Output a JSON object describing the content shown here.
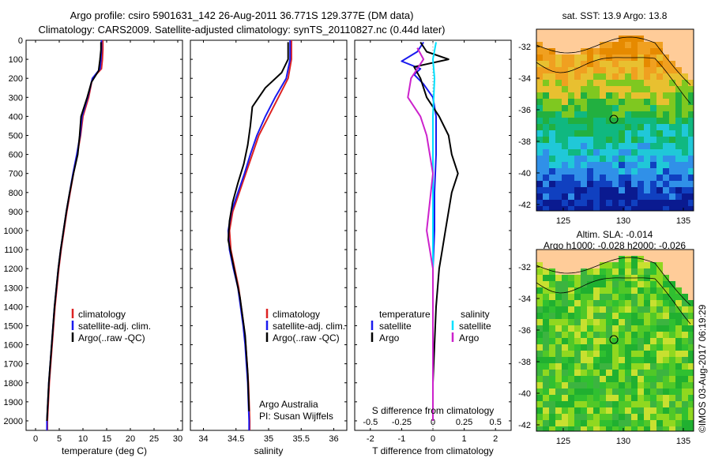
{
  "header": {
    "line1": "Argo profile: csiro 5901631_142 26-Aug-2011 36.771S 129.377E (DM data)",
    "line2": "Climatology: CARS2009. Satellite-adjusted climatology: synTS_20110827.nc (0.44d later)"
  },
  "colors": {
    "climatology": "#dd2222",
    "satellite": "#1a1aee",
    "argo": "#000000",
    "sat_sal": "#00e0ff",
    "argo_sal": "#cc22cc",
    "land": "#ffcc99"
  },
  "legend": {
    "climatology": "climatology",
    "satellite_adj": "satellite-adj. clim.",
    "argo": "Argo(..raw -QC)",
    "temperature": "temperature",
    "salinity": "salinity",
    "satellite": "satellite",
    "argo_short": "Argo"
  },
  "credits": {
    "org": "Argo Australia",
    "pi": "PI: Susan Wijffels"
  },
  "maps": {
    "sst_title": "sat. SST: 13.9 Argo: 13.8",
    "sla_title1": "Altim. SLA: -0.014",
    "sla_title2": "Argo h1000: -0.028 h2000: -0.026",
    "watermark": "©IMOS 03-Aug-2017 06:19:29",
    "lon_ticks": [
      "125",
      "130",
      "135"
    ],
    "lat_ticks": [
      "-32",
      "-34",
      "-36",
      "-38",
      "-40",
      "-42"
    ]
  },
  "chart_data": [
    {
      "type": "line",
      "xlabel": "temperature (deg C)",
      "ylabel": "",
      "xlim": [
        -2,
        31
      ],
      "ylim": [
        2050,
        0
      ],
      "xticks": [
        0,
        5,
        10,
        15,
        20,
        25,
        30
      ],
      "yticks": [
        0,
        100,
        200,
        300,
        400,
        500,
        600,
        700,
        800,
        900,
        1000,
        1100,
        1200,
        1300,
        1400,
        1500,
        1600,
        1700,
        1800,
        1900,
        2000
      ],
      "series": [
        {
          "name": "climatology",
          "color": "#dd2222",
          "points": [
            [
              14.2,
              0
            ],
            [
              14.2,
              50
            ],
            [
              14.1,
              100
            ],
            [
              13.9,
              150
            ],
            [
              12.0,
              200
            ],
            [
              11.2,
              300
            ],
            [
              10.0,
              400
            ],
            [
              9.5,
              500
            ],
            [
              8.8,
              600
            ],
            [
              8.0,
              700
            ],
            [
              7.3,
              800
            ],
            [
              6.6,
              900
            ],
            [
              6.0,
              1000
            ],
            [
              5.4,
              1100
            ],
            [
              4.9,
              1200
            ],
            [
              4.5,
              1300
            ],
            [
              4.1,
              1400
            ],
            [
              3.8,
              1500
            ],
            [
              3.5,
              1600
            ],
            [
              3.2,
              1700
            ],
            [
              2.9,
              1800
            ],
            [
              2.7,
              1900
            ],
            [
              2.5,
              2000
            ],
            [
              2.5,
              2050
            ]
          ]
        },
        {
          "name": "satellite-adj. clim.",
          "color": "#1a1aee",
          "points": [
            [
              13.9,
              0
            ],
            [
              13.9,
              50
            ],
            [
              13.8,
              100
            ],
            [
              13.6,
              150
            ],
            [
              12.0,
              200
            ],
            [
              11.0,
              300
            ],
            [
              9.8,
              400
            ],
            [
              9.4,
              500
            ],
            [
              8.7,
              600
            ],
            [
              7.9,
              700
            ],
            [
              7.2,
              800
            ],
            [
              6.5,
              900
            ],
            [
              5.9,
              1000
            ],
            [
              5.3,
              1100
            ],
            [
              4.8,
              1200
            ],
            [
              4.4,
              1300
            ],
            [
              4.0,
              1400
            ],
            [
              3.7,
              1500
            ],
            [
              3.4,
              1600
            ],
            [
              3.1,
              1700
            ],
            [
              2.8,
              1800
            ],
            [
              2.6,
              1900
            ],
            [
              2.4,
              2000
            ],
            [
              2.4,
              2050
            ]
          ]
        },
        {
          "name": "Argo(..raw -QC)",
          "color": "#000000",
          "points": [
            [
              13.8,
              10
            ],
            [
              13.8,
              50
            ],
            [
              13.6,
              100
            ],
            [
              13.3,
              160
            ],
            [
              11.8,
              220
            ],
            [
              10.9,
              300
            ],
            [
              9.6,
              400
            ],
            [
              9.3,
              500
            ],
            [
              8.9,
              600
            ],
            [
              8.0,
              700
            ],
            [
              7.2,
              800
            ],
            [
              6.5,
              900
            ],
            [
              5.9,
              1000
            ],
            [
              5.3,
              1100
            ],
            [
              4.8,
              1200
            ],
            [
              4.4,
              1300
            ],
            [
              4.0,
              1400
            ],
            [
              3.7,
              1500
            ],
            [
              3.4,
              1600
            ],
            [
              3.1,
              1700
            ],
            [
              2.8,
              1800
            ],
            [
              2.6,
              1900
            ],
            [
              2.4,
              2000
            ]
          ]
        }
      ]
    },
    {
      "type": "line",
      "xlabel": "salinity",
      "ylabel": "",
      "xlim": [
        33.8,
        36.2
      ],
      "ylim": [
        2050,
        0
      ],
      "xticks": [
        34,
        34.5,
        35,
        35.5,
        36
      ],
      "series": [
        {
          "name": "climatology",
          "color": "#dd2222",
          "points": [
            [
              35.35,
              0
            ],
            [
              35.35,
              100
            ],
            [
              35.3,
              200
            ],
            [
              35.15,
              300
            ],
            [
              35.0,
              400
            ],
            [
              34.85,
              500
            ],
            [
              34.75,
              600
            ],
            [
              34.65,
              700
            ],
            [
              34.55,
              800
            ],
            [
              34.45,
              900
            ],
            [
              34.4,
              1000
            ],
            [
              34.42,
              1100
            ],
            [
              34.48,
              1200
            ],
            [
              34.54,
              1300
            ],
            [
              34.58,
              1400
            ],
            [
              34.62,
              1500
            ],
            [
              34.65,
              1600
            ],
            [
              34.67,
              1700
            ],
            [
              34.69,
              1800
            ],
            [
              34.7,
              1900
            ],
            [
              34.71,
              2000
            ],
            [
              34.71,
              2050
            ]
          ]
        },
        {
          "name": "satellite-adj. clim.",
          "color": "#1a1aee",
          "points": [
            [
              35.33,
              0
            ],
            [
              35.33,
              100
            ],
            [
              35.27,
              200
            ],
            [
              35.1,
              300
            ],
            [
              34.95,
              400
            ],
            [
              34.82,
              500
            ],
            [
              34.72,
              600
            ],
            [
              34.63,
              700
            ],
            [
              34.53,
              800
            ],
            [
              34.43,
              900
            ],
            [
              34.38,
              1000
            ],
            [
              34.4,
              1100
            ],
            [
              34.46,
              1200
            ],
            [
              34.53,
              1300
            ],
            [
              34.57,
              1400
            ],
            [
              34.61,
              1500
            ],
            [
              34.64,
              1600
            ],
            [
              34.66,
              1700
            ],
            [
              34.68,
              1800
            ],
            [
              34.69,
              1900
            ],
            [
              34.7,
              2000
            ],
            [
              34.7,
              2050
            ]
          ]
        },
        {
          "name": "Argo(..raw -QC)",
          "color": "#000000",
          "points": [
            [
              35.3,
              10
            ],
            [
              35.3,
              100
            ],
            [
              35.2,
              170
            ],
            [
              34.95,
              250
            ],
            [
              34.75,
              350
            ],
            [
              34.72,
              450
            ],
            [
              34.68,
              550
            ],
            [
              34.62,
              650
            ],
            [
              34.53,
              750
            ],
            [
              34.45,
              850
            ],
            [
              34.4,
              950
            ],
            [
              34.38,
              1050
            ],
            [
              34.44,
              1150
            ],
            [
              34.5,
              1250
            ],
            [
              34.56,
              1350
            ],
            [
              34.6,
              1450
            ],
            [
              34.64,
              1550
            ],
            [
              34.66,
              1650
            ],
            [
              34.68,
              1750
            ],
            [
              34.69,
              1850
            ],
            [
              34.7,
              1950
            ]
          ]
        }
      ]
    },
    {
      "type": "line",
      "xlabel": "T difference from climatology",
      "xlabel2": "S difference from climatology",
      "xlim": [
        -2.5,
        2.5
      ],
      "ylim": [
        2050,
        0
      ],
      "xticks": [
        -2,
        -1,
        0,
        1,
        2
      ],
      "xticks2": [
        "-0.5",
        "-0.25",
        "0",
        "0.25",
        "0.5"
      ],
      "series": [
        {
          "name": "temperature satellite",
          "color": "#1a1aee",
          "points": [
            [
              -0.3,
              10
            ],
            [
              -0.5,
              60
            ],
            [
              -1.0,
              110
            ],
            [
              -0.4,
              150
            ],
            [
              -0.6,
              180
            ],
            [
              -0.3,
              230
            ],
            [
              0.0,
              300
            ],
            [
              0.1,
              400
            ],
            [
              0.1,
              600
            ],
            [
              0.05,
              800
            ],
            [
              0.05,
              1000
            ],
            [
              0.0,
              1200
            ],
            [
              0.0,
              1500
            ],
            [
              0.0,
              1800
            ],
            [
              0.0,
              2000
            ]
          ]
        },
        {
          "name": "temperature Argo",
          "color": "#000000",
          "points": [
            [
              -0.4,
              10
            ],
            [
              -0.2,
              60
            ],
            [
              0.5,
              100
            ],
            [
              -0.6,
              140
            ],
            [
              -0.4,
              200
            ],
            [
              -0.2,
              300
            ],
            [
              0.2,
              400
            ],
            [
              0.5,
              500
            ],
            [
              0.6,
              600
            ],
            [
              0.8,
              700
            ],
            [
              0.6,
              800
            ],
            [
              0.5,
              900
            ],
            [
              0.4,
              1000
            ],
            [
              0.3,
              1100
            ],
            [
              0.2,
              1200
            ],
            [
              0.1,
              1400
            ],
            [
              0.05,
              1600
            ],
            [
              0.0,
              1800
            ],
            [
              0.0,
              2000
            ]
          ]
        },
        {
          "name": "salinity satellite",
          "color": "#00e0ff",
          "points": [
            [
              0.1,
              10
            ],
            [
              0.0,
              100
            ],
            [
              0.05,
              200
            ],
            [
              0.0,
              400
            ],
            [
              0.0,
              700
            ],
            [
              0.0,
              1000
            ],
            [
              0.0,
              1400
            ],
            [
              0.0,
              2000
            ]
          ]
        },
        {
          "name": "salinity Argo",
          "color": "#cc22cc",
          "points": [
            [
              -0.5,
              40
            ],
            [
              -0.3,
              100
            ],
            [
              -0.7,
              200
            ],
            [
              -0.8,
              300
            ],
            [
              -0.4,
              400
            ],
            [
              -0.2,
              500
            ],
            [
              0.0,
              700
            ],
            [
              -0.2,
              1000
            ],
            [
              0.0,
              1200
            ],
            [
              0.0,
              1600
            ],
            [
              0.0,
              2000
            ]
          ]
        }
      ]
    }
  ]
}
